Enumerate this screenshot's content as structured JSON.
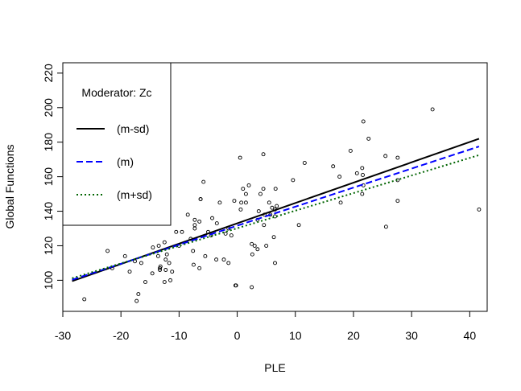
{
  "chart_data": {
    "type": "scatter",
    "title": "",
    "xlabel": "PLE",
    "ylabel": "Global Functions",
    "xlim": [
      -30,
      43
    ],
    "ylim": [
      82,
      226
    ],
    "xticks": [
      -30,
      -20,
      -10,
      0,
      10,
      20,
      30,
      40
    ],
    "xtick_labels": [
      "-30",
      "-20",
      "-10",
      "0",
      "10",
      "20",
      "30",
      "40"
    ],
    "yticks": [
      100,
      120,
      140,
      160,
      180,
      200,
      220
    ],
    "ytick_labels": [
      "100",
      "120",
      "140",
      "160",
      "180",
      "200",
      "220"
    ],
    "grid": false,
    "legend": {
      "position": "top-left",
      "title": "Moderator: Zc",
      "entries": [
        {
          "label": "(m-sd)",
          "color": "#000000",
          "style": "solid"
        },
        {
          "label": "(m)",
          "color": "#0000ff",
          "style": "dashed"
        },
        {
          "label": "(m+sd)",
          "color": "#006400",
          "style": "dotted"
        }
      ]
    },
    "lines": [
      {
        "name": "(m-sd)",
        "color": "#000000",
        "style": "solid",
        "x": [
          -28.4,
          41.6
        ],
        "y": [
          99.5,
          182
        ]
      },
      {
        "name": "(m)",
        "color": "#0000ff",
        "style": "dashed",
        "x": [
          -28.4,
          41.6
        ],
        "y": [
          100.3,
          177.5
        ]
      },
      {
        "name": "(m+sd)",
        "color": "#006400",
        "style": "dotted",
        "x": [
          -28.4,
          41.6
        ],
        "y": [
          101.2,
          172.5
        ]
      }
    ],
    "points": {
      "x": [
        -26.3,
        -22.3,
        -21.5,
        -19.3,
        -18.5,
        -17.6,
        -17.3,
        -17.0,
        -16.5,
        -15.8,
        -14.6,
        -14.5,
        -13.6,
        -13.5,
        -13.3,
        -13.3,
        -13.2,
        -12.5,
        -12.5,
        -12.3,
        -12.3,
        -12.1,
        -11.7,
        -11.5,
        -11.2,
        -10.5,
        -10.0,
        -9.5,
        -8.5,
        -8.0,
        -7.6,
        -7.5,
        -7.3,
        -7.3,
        -7.3,
        -6.5,
        -6.5,
        -6.3,
        -6.3,
        -5.8,
        -5.5,
        -5.0,
        -4.5,
        -4.3,
        -3.6,
        -3.5,
        -3.0,
        -2.3,
        -2.0,
        -1.5,
        -1.5,
        -1.0,
        -0.5,
        -0.3,
        -0.2,
        0.5,
        0.6,
        0.7,
        1.0,
        1.5,
        1.5,
        2.0,
        2.5,
        2.5,
        2.6,
        3.0,
        3.5,
        3.5,
        3.7,
        4.0,
        4.5,
        4.5,
        4.6,
        4.7,
        5.0,
        5.5,
        5.7,
        6.0,
        6.3,
        6.5,
        6.5,
        6.5,
        6.6,
        6.8,
        9.6,
        10.6,
        11.6,
        16.5,
        17.6,
        17.8,
        19.5,
        20.6,
        21.5,
        21.5,
        21.6,
        21.7,
        21.7,
        22.6,
        25.5,
        25.6,
        27.6,
        27.6,
        27.6,
        33.6,
        41.6
      ],
      "y": [
        89,
        117,
        107,
        114,
        105,
        111,
        88,
        92,
        110,
        99,
        104,
        119,
        114,
        120,
        107,
        106,
        108,
        122,
        99,
        106,
        112,
        115,
        110,
        100,
        105,
        128,
        120,
        128,
        138,
        124,
        117,
        109,
        135,
        130,
        132,
        107,
        134,
        147,
        147,
        157,
        114,
        128,
        126,
        136,
        112,
        133,
        145,
        112,
        127,
        110,
        130,
        126,
        146,
        97,
        97,
        171,
        141,
        145,
        153,
        145,
        150,
        155,
        96,
        121,
        115,
        120,
        118,
        135,
        140,
        150,
        173,
        153,
        132,
        138,
        120,
        145,
        138,
        142,
        125,
        110,
        137,
        141,
        153,
        143,
        158,
        132,
        168,
        166,
        160,
        145,
        175,
        162,
        165,
        150,
        161,
        192,
        155,
        182,
        172,
        131,
        171,
        158,
        146,
        199,
        141
      ]
    }
  }
}
